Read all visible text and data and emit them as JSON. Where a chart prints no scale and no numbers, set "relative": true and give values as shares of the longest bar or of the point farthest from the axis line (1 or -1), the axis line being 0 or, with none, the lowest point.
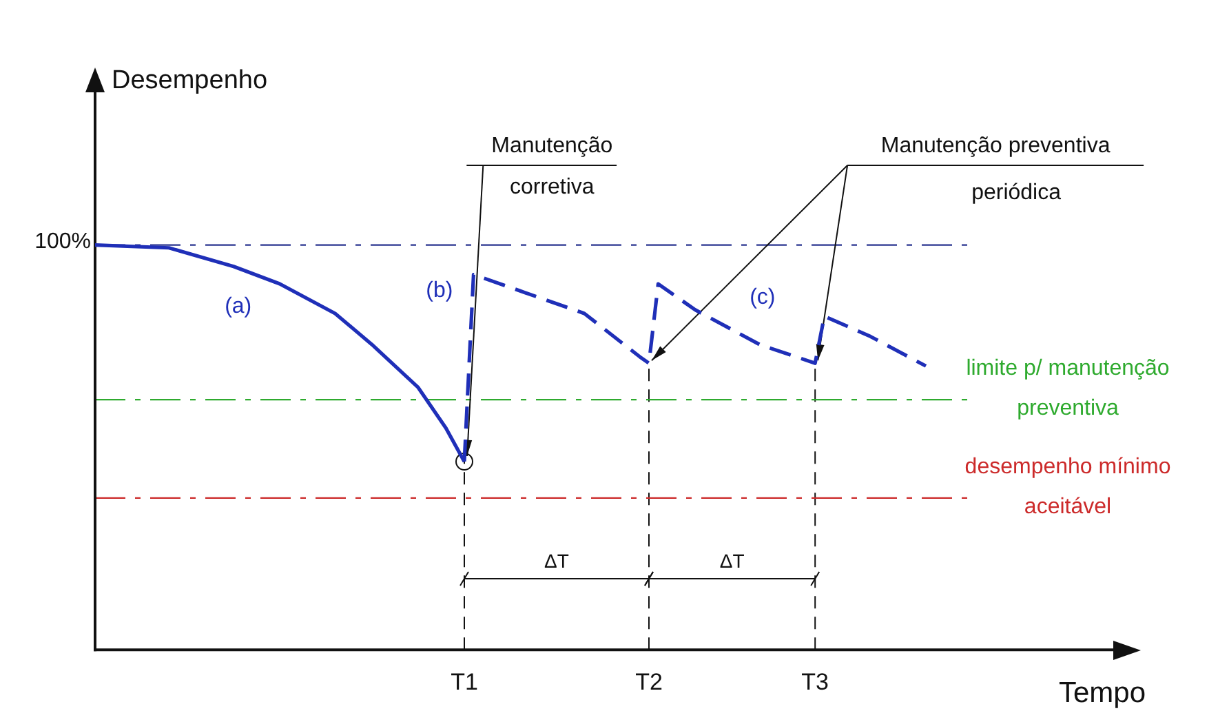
{
  "chart_data": {
    "type": "line",
    "relative": true,
    "xlabel": "Tempo",
    "marker": "none",
    "categories": [
      null,
      null,
      null,
      null,
      null,
      null,
      null,
      null,
      null,
      null,
      null,
      null,
      null,
      null,
      null,
      null,
      null,
      null,
      null,
      null,
      null,
      null,
      null,
      null,
      null,
      null,
      null,
      null,
      null,
      null,
      null,
      null,
      null,
      null,
      null,
      null,
      null,
      null,
      null,
      null,
      "T1",
      null,
      null,
      null,
      null,
      null,
      null,
      null,
      null,
      null,
      null,
      null,
      null,
      null,
      null,
      null,
      null,
      null,
      null,
      null,
      "T2",
      null,
      null,
      null,
      null,
      null,
      null,
      null,
      null,
      null,
      null,
      null,
      null,
      null,
      null,
      null,
      null,
      null,
      "T3",
      null,
      null,
      null,
      null,
      null,
      null,
      null,
      null,
      null,
      null,
      null,
      null
    ],
    "series": [
      {
        "color": "#1f2fb8",
        "line_style": "solid",
        "values": [
          1.0,
          null,
          null,
          null,
          null,
          null,
          null,
          null,
          0.993,
          null,
          null,
          null,
          null,
          null,
          null,
          0.947,
          null,
          null,
          null,
          null,
          0.904,
          null,
          null,
          null,
          null,
          null,
          0.831,
          null,
          null,
          null,
          0.754,
          null,
          null,
          null,
          null,
          0.648,
          null,
          null,
          0.548,
          null,
          0.465,
          null,
          null,
          null,
          null,
          null,
          null,
          null,
          null,
          null,
          null,
          null,
          null,
          null,
          null,
          null,
          null,
          null,
          null,
          null,
          null,
          null,
          null,
          null,
          null,
          null,
          null,
          null,
          null,
          null,
          null,
          null,
          null,
          null,
          null,
          null,
          null,
          null,
          null,
          null,
          null,
          null,
          null,
          null,
          null,
          null,
          null,
          null,
          null,
          null,
          null
        ]
      },
      {
        "color": "#1f2fb8",
        "line_style": "dashed",
        "values": [
          null,
          null,
          null,
          null,
          null,
          null,
          null,
          null,
          null,
          null,
          null,
          null,
          null,
          null,
          null,
          null,
          null,
          null,
          null,
          null,
          null,
          null,
          null,
          null,
          null,
          null,
          null,
          null,
          null,
          null,
          null,
          null,
          null,
          null,
          null,
          null,
          null,
          null,
          null,
          null,
          0.465,
          0.927,
          null,
          null,
          null,
          null,
          0.887,
          null,
          null,
          null,
          null,
          null,
          null,
          0.831,
          null,
          null,
          null,
          null,
          null,
          0.724,
          0.708,
          0.904,
          null,
          null,
          null,
          0.84,
          null,
          null,
          null,
          null,
          null,
          null,
          0.754,
          null,
          null,
          null,
          null,
          null,
          0.708,
          0.824,
          null,
          null,
          null,
          null,
          0.774,
          null,
          null,
          null,
          null,
          null,
          0.701
        ]
      }
    ],
    "ref_lines": [
      {
        "axis": "y",
        "value": 1,
        "label": "100%",
        "color": "#2a3590",
        "line_style": "dashed"
      },
      {
        "axis": "y",
        "value": 0.618,
        "label": "limite p/ manutenção preventiva",
        "color": "#2eaa2e",
        "line_style": "dashed"
      },
      {
        "axis": "y",
        "value": 0.375,
        "label": "desempenho mínimo aceitável",
        "color": "#cc2a2a",
        "line_style": "dashed"
      },
      {
        "axis": "x",
        "value": "T1",
        "line_style": "dashed"
      },
      {
        "axis": "x",
        "value": "T2",
        "line_style": "dashed"
      },
      {
        "axis": "x",
        "value": "T3",
        "line_style": "dashed"
      }
    ],
    "annotations": [
      "(a)",
      "(b)",
      "(c)",
      "Manutenção corretiva",
      "Manutenção preventiva periódica",
      "Desempenho",
      "ΔT",
      "ΔT"
    ]
  }
}
